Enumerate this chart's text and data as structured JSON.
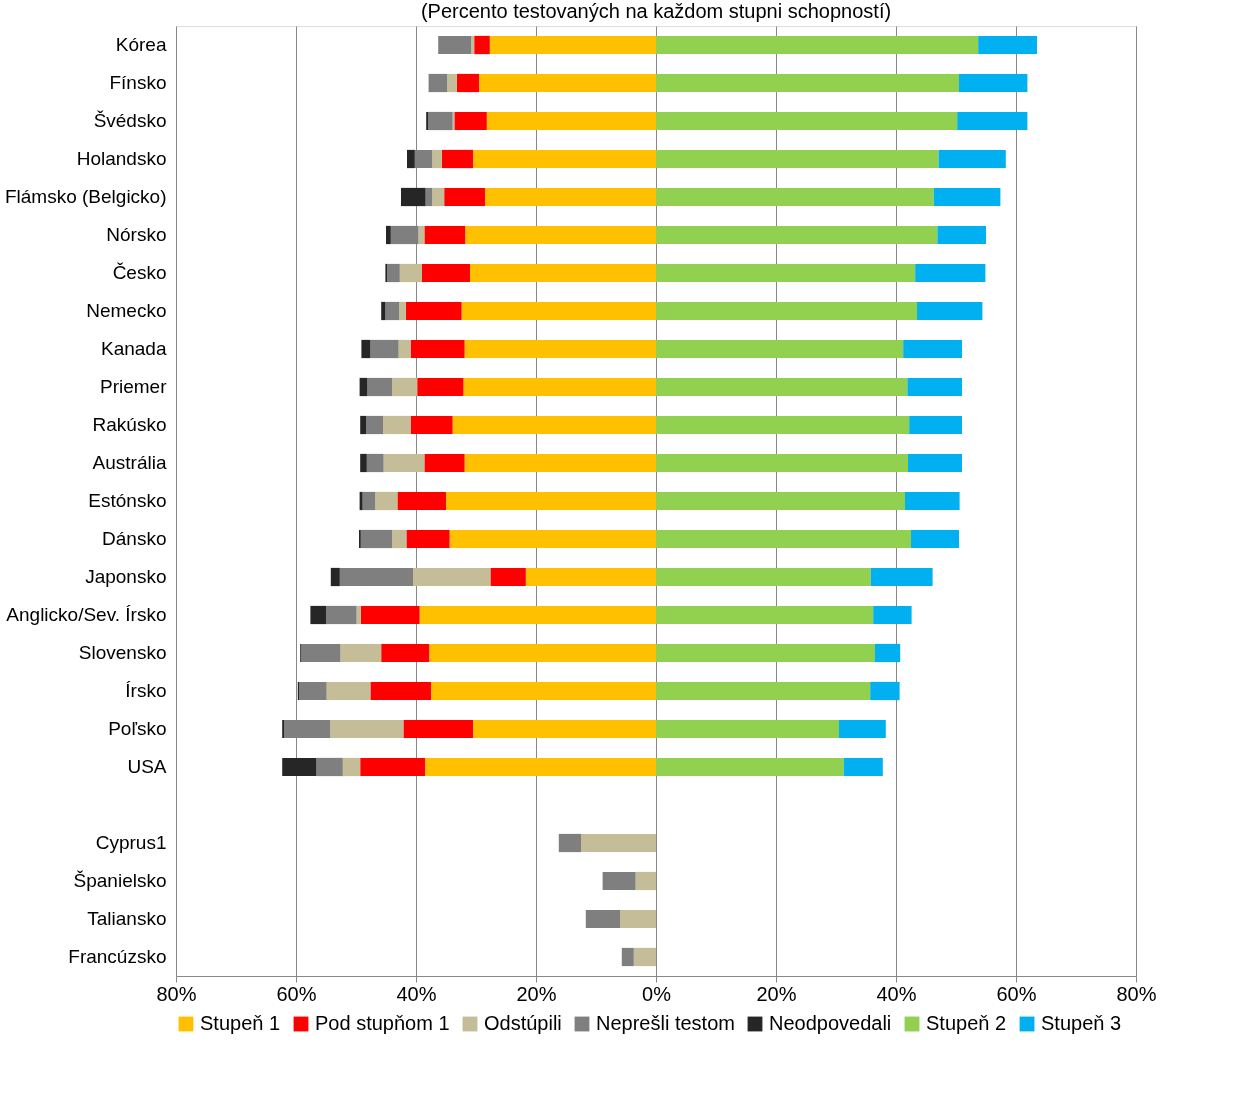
{
  "chart_data": {
    "type": "bar",
    "orientation": "horizontal",
    "stacked": true,
    "title": "(Percento testovaných na každom stupni schopností)",
    "categories": [
      "Kórea",
      "Fínsko",
      "Švédsko",
      "Holandsko",
      "Flámsko (Belgicko)",
      "Nórsko",
      "Česko",
      "Nemecko",
      "Kanada",
      "Priemer",
      "Rakúsko",
      "Austrália",
      "Estónsko",
      "Dánsko",
      "Japonsko",
      "Anglicko/Sev. Írsko",
      "Slovensko",
      "Írsko",
      "Poľsko",
      "USA",
      null,
      "Cyprus1",
      "Španielsko",
      "Taliansko",
      "Francúzsko"
    ],
    "series": [
      {
        "name": "Stupeň 1",
        "color": "#ffc000",
        "values": [
          -27.7,
          -29.5,
          -28.2,
          -30.5,
          -28.5,
          -31.8,
          -31.0,
          -32.4,
          -31.9,
          -32.1,
          -33.9,
          -31.9,
          -35.0,
          -34.4,
          -21.7,
          -39.4,
          -37.8,
          -37.5,
          -30.5,
          -38.5,
          null,
          null,
          null,
          null,
          null
        ]
      },
      {
        "name": "Pod stupňom 1",
        "color": "#ff0000",
        "values": [
          -2.6,
          -3.7,
          -5.4,
          -5.2,
          -6.8,
          -6.8,
          -8.0,
          -9.3,
          -9.0,
          -7.7,
          -7.0,
          -6.7,
          -8.1,
          -7.2,
          -5.9,
          -9.8,
          -8.0,
          -10.1,
          -11.6,
          -10.8,
          null,
          null,
          null,
          null,
          null
        ]
      },
      {
        "name": "Odstúpili",
        "color": "#c4bd97",
        "values": [
          -0.5,
          -1.6,
          -0.3,
          -1.6,
          -2.0,
          -1.0,
          -3.7,
          -1.1,
          -2.0,
          -4.2,
          -4.6,
          -6.8,
          -3.7,
          -2.4,
          -12.9,
          -0.7,
          -6.8,
          -7.3,
          -12.2,
          -2.9,
          null,
          -12.5,
          -3.4,
          -6.0,
          -3.7
        ]
      },
      {
        "name": "Neprešli testom",
        "color": "#7f7f7f",
        "values": [
          -5.5,
          -3.1,
          -4.1,
          -2.9,
          -1.1,
          -4.6,
          -2.1,
          -2.3,
          -4.7,
          -4.1,
          -2.8,
          -2.8,
          -2.1,
          -5.2,
          -12.2,
          -5.1,
          -6.5,
          -4.6,
          -7.7,
          -4.4,
          null,
          -3.7,
          -5.5,
          -5.7,
          -2.0
        ]
      },
      {
        "name": "Neodpovedali",
        "color": "#262626",
        "values": [
          null,
          null,
          -0.3,
          -1.3,
          -4.1,
          -0.8,
          -0.3,
          -0.7,
          -1.5,
          -1.3,
          -1.0,
          -1.1,
          -0.5,
          -0.3,
          -1.5,
          -2.6,
          -0.2,
          -0.2,
          -0.3,
          -5.7,
          null,
          null,
          null,
          null,
          null
        ]
      },
      {
        "name": "Stupeň 2",
        "color": "#92d050",
        "values": [
          53.7,
          50.5,
          50.2,
          47.1,
          46.3,
          46.9,
          43.2,
          43.5,
          41.2,
          41.9,
          42.2,
          42.0,
          41.5,
          42.5,
          35.8,
          36.2,
          36.5,
          35.7,
          30.5,
          31.3,
          null,
          null,
          null,
          null,
          null
        ]
      },
      {
        "name": "Stupeň 3",
        "color": "#00b0f0",
        "values": [
          9.8,
          11.4,
          11.7,
          11.2,
          11.1,
          8.1,
          11.7,
          10.9,
          9.8,
          9.1,
          8.8,
          9.0,
          9.1,
          8.0,
          10.3,
          6.4,
          4.2,
          4.9,
          7.8,
          6.5,
          null,
          null,
          null,
          null,
          null
        ]
      }
    ],
    "xlim": [
      -80,
      80
    ],
    "xticks": [
      {
        "value": -80,
        "label": "80%"
      },
      {
        "value": -60,
        "label": "60%"
      },
      {
        "value": -40,
        "label": "40%"
      },
      {
        "value": -20,
        "label": "20%"
      },
      {
        "value": 0,
        "label": "0%"
      },
      {
        "value": 20,
        "label": "20%"
      },
      {
        "value": 40,
        "label": "40%"
      },
      {
        "value": 60,
        "label": "60%"
      },
      {
        "value": 80,
        "label": "80%"
      }
    ],
    "grid": "x",
    "legend": "bottom"
  }
}
